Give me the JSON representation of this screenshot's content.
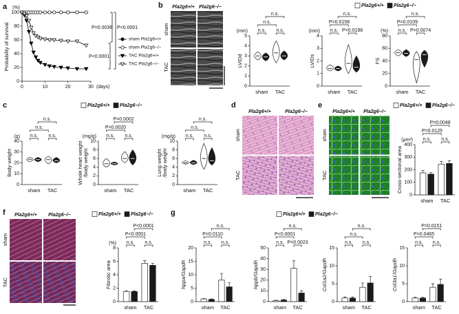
{
  "chart_data": [
    {
      "type": "line",
      "panel": "a",
      "ylabel": "Probability of survival",
      "unit": "(%)",
      "xlabel": "(days)",
      "x": [
        0,
        1,
        2,
        3,
        4,
        5,
        6,
        7,
        8,
        10,
        12,
        14,
        17,
        20,
        24,
        28
      ],
      "xlim": [
        0,
        30
      ],
      "xticks": [
        0,
        10,
        20,
        30
      ],
      "ylim": [
        0,
        100
      ],
      "yticks": [
        0,
        20,
        40,
        60,
        80,
        100
      ],
      "series": [
        {
          "name": "sham Pla2g6+/+",
          "color": "#000000",
          "marker": "circle",
          "filled": true,
          "values": [
            100,
            100,
            100,
            100,
            100,
            100,
            100,
            100,
            100,
            100,
            100,
            100,
            100,
            100,
            100,
            100
          ]
        },
        {
          "name": "sham Pla2g6−/−",
          "color": "#000000",
          "marker": "circle",
          "filled": false,
          "values": [
            100,
            100,
            100,
            100,
            100,
            100,
            100,
            100,
            100,
            100,
            100,
            100,
            100,
            100,
            100,
            100
          ]
        },
        {
          "name": "TAC Pla2g6+/+",
          "color": "#000000",
          "marker": "triangle",
          "filled": true,
          "values": [
            100,
            96,
            88,
            72,
            55,
            42,
            35,
            30,
            27,
            24,
            22,
            21,
            20,
            19,
            18,
            18
          ]
        },
        {
          "name": "TAC Pla2g6−/−",
          "color": "#000000",
          "marker": "triangle",
          "filled": false,
          "values": [
            100,
            98,
            95,
            88,
            78,
            70,
            66,
            64,
            62,
            61,
            60,
            60,
            59,
            58,
            58,
            52
          ]
        }
      ],
      "annotations": [
        "P=0.0036",
        "P<0.0001",
        "P<0.0001"
      ]
    },
    {
      "type": "violin",
      "ylabel": "LVIDd",
      "unit": "(mm)",
      "categories": [
        "sham",
        "TAC"
      ],
      "ylim": [
        0,
        5
      ],
      "yticks": [
        0,
        1,
        2,
        3,
        4,
        5
      ],
      "series": [
        {
          "name": "Pla2g6+/+",
          "color": "#ffffff",
          "values": [
            3.0,
            3.3
          ],
          "min": [
            2.6,
            2.3
          ],
          "max": [
            3.4,
            4.5
          ]
        },
        {
          "name": "Pla2g6−/−",
          "color": "#1a1a1a",
          "values": [
            2.9,
            3.0
          ],
          "min": [
            2.5,
            2.6
          ],
          "max": [
            3.3,
            3.5
          ]
        }
      ],
      "comparisons": [
        "n.s.",
        "n.s.",
        "n.s.",
        "n.s."
      ]
    },
    {
      "type": "violin",
      "ylabel": "LVIDs",
      "unit": "(mm)",
      "categories": [
        "sham",
        "TAC"
      ],
      "ylim": [
        0,
        4
      ],
      "yticks": [
        0,
        1,
        2,
        3,
        4
      ],
      "series": [
        {
          "color": "#ffffff",
          "values": [
            1.4,
            1.8
          ],
          "min": [
            1.2,
            1.0
          ],
          "max": [
            1.7,
            3.3
          ]
        },
        {
          "color": "#1a1a1a",
          "values": [
            1.4,
            1.5
          ],
          "min": [
            1.2,
            1.1
          ],
          "max": [
            1.6,
            2.4
          ]
        }
      ],
      "comparisons": [
        "n.s.",
        "P=0.0198",
        "P=0.0158",
        "n.s."
      ]
    },
    {
      "type": "violin",
      "ylabel": "FS",
      "unit": "(%)",
      "categories": [
        "sham",
        "TAC"
      ],
      "ylim": [
        0,
        80
      ],
      "yticks": [
        0,
        20,
        40,
        60,
        80
      ],
      "series": [
        {
          "color": "#ffffff",
          "values": [
            53,
            42
          ],
          "min": [
            48,
            5
          ],
          "max": [
            58,
            55
          ]
        },
        {
          "color": "#1a1a1a",
          "values": [
            52,
            50
          ],
          "min": [
            47,
            30
          ],
          "max": [
            58,
            57
          ]
        }
      ],
      "comparisons": [
        "n.s.",
        "P=0.0074",
        "P=0.0109",
        "n.s."
      ]
    },
    {
      "type": "violin",
      "panel": "c",
      "ylabel": "Body weight",
      "unit": "(g)",
      "categories": [
        "sham",
        "TAC"
      ],
      "ylim": [
        0,
        40
      ],
      "yticks": [
        0,
        10,
        20,
        30,
        40
      ],
      "series": [
        {
          "name": "Pla2g6+/+",
          "color": "#ffffff",
          "values": [
            23,
            23
          ],
          "min": [
            21,
            19
          ],
          "max": [
            25,
            26
          ]
        },
        {
          "name": "Pla2g6−/−",
          "color": "#1a1a1a",
          "values": [
            23,
            22
          ],
          "min": [
            21,
            20
          ],
          "max": [
            25,
            25
          ]
        }
      ],
      "comparisons": [
        "n.s.",
        "n.s.",
        "n.s.",
        "n.s."
      ]
    },
    {
      "type": "violin",
      "ylabel": [
        "Whole heart weight",
        "/body weight"
      ],
      "unit": "(mg/g)",
      "categories": [
        "sham",
        "TAC"
      ],
      "ylim": [
        0,
        10
      ],
      "yticks": [
        0,
        2,
        4,
        6,
        8,
        10
      ],
      "series": [
        {
          "color": "#ffffff",
          "values": [
            4.8,
            6.0
          ],
          "min": [
            4,
            5
          ],
          "max": [
            6,
            7.6
          ]
        },
        {
          "color": "#1a1a1a",
          "values": [
            4.8,
            6.0
          ],
          "min": [
            4.5,
            4.5
          ],
          "max": [
            5.2,
            8
          ]
        }
      ],
      "comparisons": [
        "n.s.",
        "n.s.",
        "P=0.0020",
        "P=0.0002"
      ]
    },
    {
      "type": "violin",
      "ylabel": [
        "Lung weight",
        "/body weight"
      ],
      "unit": "(mg/g)",
      "categories": [
        "sham",
        "TAC"
      ],
      "ylim": [
        0,
        10
      ],
      "yticks": [
        0,
        2,
        4,
        6,
        8,
        10
      ],
      "series": [
        {
          "color": "#ffffff",
          "values": [
            5,
            6
          ],
          "min": [
            4.7,
            3.5
          ],
          "max": [
            5.5,
            9.5
          ]
        },
        {
          "color": "#1a1a1a",
          "values": [
            5,
            5.5
          ],
          "min": [
            4.6,
            4.5
          ],
          "max": [
            5.6,
            8.5
          ]
        }
      ],
      "comparisons": [
        "n.s.",
        "n.s.",
        "n.s.",
        "n.s."
      ]
    },
    {
      "type": "bar",
      "ylabel": "Cross-sectional area",
      "unit": "(μm²)",
      "categories": [
        "sham",
        "TAC"
      ],
      "ylim": [
        0,
        400
      ],
      "yticks": [
        0,
        100,
        200,
        300,
        400
      ],
      "series": [
        {
          "name": "Pla2g6+/+",
          "color": "#ffffff",
          "values": [
            175,
            245
          ],
          "errors": [
            20,
            20
          ]
        },
        {
          "name": "Pla2g6−/−",
          "color": "#1a1a1a",
          "values": [
            165,
            250
          ],
          "errors": [
            12,
            22
          ]
        }
      ],
      "comparisons": [
        "n.s.",
        "n.s.",
        "P=0.0125",
        "P=0.0048"
      ]
    },
    {
      "type": "bar",
      "ylabel": "Fibrotic area",
      "unit": "(%)",
      "categories": [
        "sham",
        "TAC"
      ],
      "ylim": [
        0,
        8
      ],
      "yticks": [
        0,
        2,
        4,
        6,
        8
      ],
      "series": [
        {
          "name": "Pla2g6+/+",
          "color": "#ffffff",
          "values": [
            1.5,
            5.7
          ],
          "errors": [
            0.15,
            0.4
          ]
        },
        {
          "name": "Pla2g6−/−",
          "color": "#1a1a1a",
          "values": [
            1.5,
            5.4
          ],
          "errors": [
            0.1,
            0.3
          ]
        }
      ],
      "comparisons": [
        "n.s.",
        "n.s.",
        "P<0.0001",
        "P<0.0001"
      ]
    },
    {
      "type": "bar",
      "panel": "g",
      "ylabel": "Nppa/Gapdh",
      "categories": [
        "sham",
        "TAC"
      ],
      "ylim": [
        0,
        20
      ],
      "yticks": [
        0,
        5,
        10,
        15,
        20
      ],
      "series": [
        {
          "name": "Pla2g6+/+",
          "color": "#ffffff",
          "values": [
            1,
            8
          ],
          "errors": [
            0.2,
            2.5
          ]
        },
        {
          "name": "Pla2g6−/−",
          "color": "#1a1a1a",
          "values": [
            0.8,
            5.5
          ],
          "errors": [
            0.2,
            1.5
          ]
        }
      ],
      "comparisons": [
        "n.s.",
        "n.s.",
        "P=0.0110",
        "n.s."
      ]
    },
    {
      "type": "bar",
      "ylabel": "Nppb/Gapdh",
      "categories": [
        "sham",
        "TAC"
      ],
      "ylim": [
        0,
        50
      ],
      "yticks": [
        0,
        10,
        20,
        30,
        40,
        50
      ],
      "series": [
        {
          "color": "#ffffff",
          "values": [
            1,
            31
          ],
          "errors": [
            0.3,
            7
          ]
        },
        {
          "color": "#1a1a1a",
          "values": [
            1.5,
            8
          ],
          "errors": [
            0.5,
            2
          ]
        }
      ],
      "comparisons": [
        "n.s.",
        "P=0.0023",
        "P<0.0001",
        "n.s."
      ]
    },
    {
      "type": "bar",
      "ylabel": "Col1a2/Gapdh",
      "categories": [
        "sham",
        "TAC"
      ],
      "ylim": [
        0,
        15
      ],
      "yticks": [
        0,
        5,
        10,
        15
      ],
      "series": [
        {
          "color": "#ffffff",
          "values": [
            1,
            4
          ],
          "errors": [
            0.3,
            1.2
          ]
        },
        {
          "color": "#1a1a1a",
          "values": [
            1,
            5.2
          ],
          "errors": [
            0.3,
            1.8
          ]
        }
      ],
      "comparisons": [
        "n.s.",
        "n.s.",
        "n.s.",
        "n.s."
      ]
    },
    {
      "type": "bar",
      "ylabel": "Col3a1/Gapdh",
      "categories": [
        "sham",
        "TAC"
      ],
      "ylim": [
        0,
        15
      ],
      "yticks": [
        0,
        5,
        10,
        15
      ],
      "series": [
        {
          "color": "#ffffff",
          "values": [
            1,
            4
          ],
          "errors": [
            0.2,
            1
          ]
        },
        {
          "color": "#1a1a1a",
          "values": [
            1,
            4.8
          ],
          "errors": [
            0.2,
            1.5
          ]
        }
      ],
      "comparisons": [
        "n.s.",
        "n.s.",
        "P=0.0465",
        "P=0.0151"
      ]
    }
  ],
  "image_panels": [
    {
      "panel": "b",
      "columns": [
        "Pla2g6+/+",
        "Pla2g6−/−"
      ],
      "rows": [
        "sham",
        "TAC"
      ]
    },
    {
      "panel": "d",
      "columns": [
        "Pla2g6+/+",
        "Pla2g6−/−"
      ],
      "rows": [
        "sham",
        "TAC"
      ]
    },
    {
      "panel": "e",
      "columns": [
        "Pla2g6+/+",
        "Pla2g6−/−"
      ],
      "rows": [
        "sham",
        "TAC"
      ]
    },
    {
      "panel": "f",
      "columns": [
        "Pla2g6+/+",
        "Pla2g6−/−"
      ],
      "rows": [
        "sham",
        "TAC"
      ]
    }
  ]
}
